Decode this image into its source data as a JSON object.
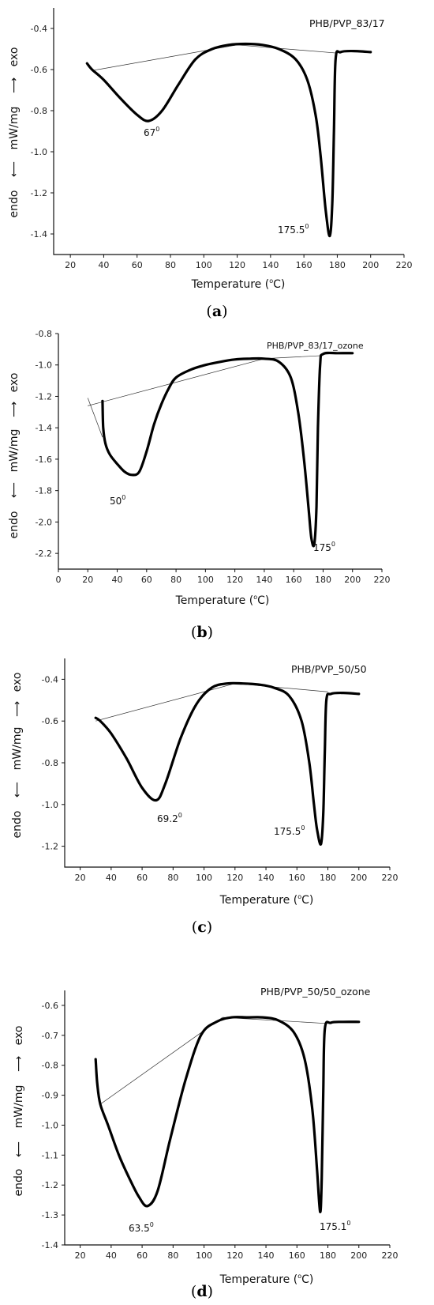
{
  "panels": [
    {
      "caption_letter": "a",
      "sample_label": "PHB/PVP_83/17",
      "ylabel": {
        "endo": "endo",
        "units": "mW/mg",
        "exo": "exo"
      },
      "xlabel": {
        "prefix": "Temperature (",
        "sup": "o",
        "suffix": "C)"
      },
      "peaks": [
        {
          "text": "67",
          "sup": "0"
        },
        {
          "text": "175.5",
          "sup": "0"
        }
      ]
    },
    {
      "caption_letter": "b",
      "sample_label": "PHB/PVP_83/17_ozone",
      "ylabel": {
        "endo": "endo",
        "units": "mW/mg",
        "exo": "exo"
      },
      "xlabel": {
        "prefix": "Temperature (",
        "sup": "o",
        "suffix": "C)"
      },
      "peaks": [
        {
          "text": "50",
          "sup": "0"
        },
        {
          "text": "175",
          "sup": "0"
        }
      ]
    },
    {
      "caption_letter": "c",
      "sample_label": "PHB/PVP_50/50",
      "ylabel": {
        "endo": "endo",
        "units": "mW/mg",
        "exo": "exo"
      },
      "xlabel": {
        "prefix": "Temperature (",
        "sup": "o",
        "suffix": "C)"
      },
      "peaks": [
        {
          "text": "69.2",
          "sup": "0"
        },
        {
          "text": "175.5",
          "sup": "0"
        }
      ]
    },
    {
      "caption_letter": "d",
      "sample_label": "PHB/PVP_50/50_ozone",
      "ylabel": {
        "endo": "endo",
        "units": "mW/mg",
        "exo": "exo"
      },
      "xlabel": {
        "prefix": "Temperature (",
        "sup": "o",
        "suffix": "C)"
      },
      "peaks": [
        {
          "text": "63.5",
          "sup": "0"
        },
        {
          "text": "175.1",
          "sup": "0"
        }
      ]
    }
  ],
  "chart_data": [
    {
      "type": "line",
      "sample": "PHB/PVP_83/17",
      "xlim": [
        10,
        220
      ],
      "ylim": [
        -1.5,
        -0.3
      ],
      "xticks": [
        20,
        40,
        60,
        80,
        100,
        120,
        140,
        160,
        180,
        200,
        220
      ],
      "yticks": [
        -1.4,
        -1.2,
        -1.0,
        -0.8,
        -0.6,
        -0.4
      ],
      "ytick_labels": [
        "-1.4",
        "-1.2",
        "-1.0",
        "-0.8",
        "-0.6",
        "-0.4"
      ],
      "series": [
        {
          "x": [
            30,
            33,
            40,
            50,
            60,
            67,
            75,
            85,
            95,
            105,
            115,
            125,
            135,
            145,
            155,
            162,
            167,
            170,
            173,
            175.5,
            177,
            178,
            179,
            182,
            190,
            200
          ],
          "y": [
            -0.57,
            -0.6,
            -0.65,
            -0.74,
            -0.82,
            -0.85,
            -0.8,
            -0.67,
            -0.55,
            -0.5,
            -0.48,
            -0.475,
            -0.48,
            -0.5,
            -0.55,
            -0.65,
            -0.82,
            -1.02,
            -1.28,
            -1.41,
            -1.25,
            -0.9,
            -0.55,
            -0.515,
            -0.51,
            -0.515
          ]
        }
      ],
      "baselines": [
        {
          "x": [
            33,
            120
          ],
          "y": [
            -0.605,
            -0.48
          ]
        },
        {
          "x": [
            120,
            180
          ],
          "y": [
            -0.48,
            -0.52
          ]
        }
      ]
    },
    {
      "type": "line",
      "sample": "PHB/PVP_83/17_ozone",
      "xlim": [
        0,
        220
      ],
      "ylim": [
        -2.3,
        -0.8
      ],
      "xticks": [
        0,
        20,
        40,
        60,
        80,
        100,
        120,
        140,
        160,
        180,
        200,
        220
      ],
      "yticks": [
        -2.2,
        -2.0,
        -1.8,
        -1.6,
        -1.4,
        -1.2,
        -1.0,
        -0.8
      ],
      "ytick_labels": [
        "-2.2",
        "-2.0",
        "-1.8",
        "-1.6",
        "-1.4",
        "-1.2",
        "-1.0",
        "-0.8"
      ],
      "series": [
        {
          "x": [
            30,
            30.5,
            32,
            35,
            40,
            45,
            50,
            55,
            60,
            65,
            70,
            75,
            80,
            90,
            100,
            110,
            120,
            130,
            140,
            150,
            158,
            163,
            167,
            170,
            172,
            174,
            175.5,
            176.5,
            178,
            180,
            190,
            200
          ],
          "y": [
            -1.23,
            -1.4,
            -1.5,
            -1.57,
            -1.63,
            -1.68,
            -1.7,
            -1.68,
            -1.55,
            -1.38,
            -1.25,
            -1.15,
            -1.08,
            -1.03,
            -1.0,
            -0.98,
            -0.965,
            -0.96,
            -0.96,
            -0.98,
            -1.08,
            -1.3,
            -1.6,
            -1.9,
            -2.1,
            -2.14,
            -1.9,
            -1.4,
            -1.0,
            -0.93,
            -0.925,
            -0.925
          ]
        }
      ],
      "baselines": [
        {
          "x": [
            20,
            140
          ],
          "y": [
            -1.26,
            -0.96
          ]
        },
        {
          "x": [
            140,
            180
          ],
          "y": [
            -0.96,
            -0.94
          ]
        },
        {
          "x": [
            20,
            30
          ],
          "y": [
            -1.21,
            -1.46
          ]
        }
      ]
    },
    {
      "type": "line",
      "sample": "PHB/PVP_50/50",
      "xlim": [
        10,
        220
      ],
      "ylim": [
        -1.3,
        -0.3
      ],
      "xticks": [
        20,
        40,
        60,
        80,
        100,
        120,
        140,
        160,
        180,
        200,
        220
      ],
      "yticks": [
        -1.2,
        -1.0,
        -0.8,
        -0.6,
        -0.4
      ],
      "ytick_labels": [
        "-1.2",
        "-1.0",
        "-0.8",
        "-0.6",
        "-0.4"
      ],
      "series": [
        {
          "x": [
            30,
            33,
            40,
            50,
            60,
            69,
            75,
            85,
            95,
            105,
            115,
            125,
            135,
            145,
            155,
            163,
            168,
            171,
            173,
            175.5,
            177,
            178,
            179,
            182,
            190,
            200
          ],
          "y": [
            -0.585,
            -0.6,
            -0.66,
            -0.78,
            -0.92,
            -0.98,
            -0.9,
            -0.68,
            -0.52,
            -0.44,
            -0.42,
            -0.42,
            -0.425,
            -0.44,
            -0.48,
            -0.6,
            -0.8,
            -1.0,
            -1.12,
            -1.19,
            -1.05,
            -0.75,
            -0.5,
            -0.47,
            -0.465,
            -0.47
          ]
        }
      ],
      "baselines": [
        {
          "x": [
            30,
            120
          ],
          "y": [
            -0.6,
            -0.42
          ]
        },
        {
          "x": [
            120,
            180
          ],
          "y": [
            -0.42,
            -0.46
          ]
        }
      ]
    },
    {
      "type": "line",
      "sample": "PHB/PVP_50/50_ozone",
      "xlim": [
        10,
        220
      ],
      "ylim": [
        -1.4,
        -0.55
      ],
      "xticks": [
        20,
        40,
        60,
        80,
        100,
        120,
        140,
        160,
        180,
        200,
        220
      ],
      "yticks": [
        -1.4,
        -1.3,
        -1.2,
        -1.1,
        -1.0,
        -0.9,
        -0.8,
        -0.7,
        -0.6
      ],
      "ytick_labels": [
        "-1.4",
        "-1.3",
        "-1.2",
        "-1.1",
        "-1.0",
        "-0.9",
        "-0.8",
        "-0.7",
        "-0.6"
      ],
      "series": [
        {
          "x": [
            30,
            31,
            33,
            38,
            45,
            52,
            58,
            63.5,
            70,
            78,
            88,
            98,
            108,
            118,
            128,
            138,
            148,
            158,
            165,
            170,
            173,
            175,
            176,
            177,
            178,
            182,
            190,
            200
          ],
          "y": [
            -0.78,
            -0.86,
            -0.93,
            -1.0,
            -1.1,
            -1.18,
            -1.24,
            -1.27,
            -1.22,
            -1.05,
            -0.85,
            -0.7,
            -0.655,
            -0.64,
            -0.64,
            -0.64,
            -0.65,
            -0.69,
            -0.78,
            -0.95,
            -1.15,
            -1.29,
            -1.18,
            -0.9,
            -0.68,
            -0.658,
            -0.655,
            -0.655
          ]
        }
      ],
      "baselines": [
        {
          "x": [
            33,
            112
          ],
          "y": [
            -0.93,
            -0.64
          ]
        },
        {
          "x": [
            112,
            178
          ],
          "y": [
            -0.64,
            -0.66
          ]
        }
      ]
    }
  ]
}
